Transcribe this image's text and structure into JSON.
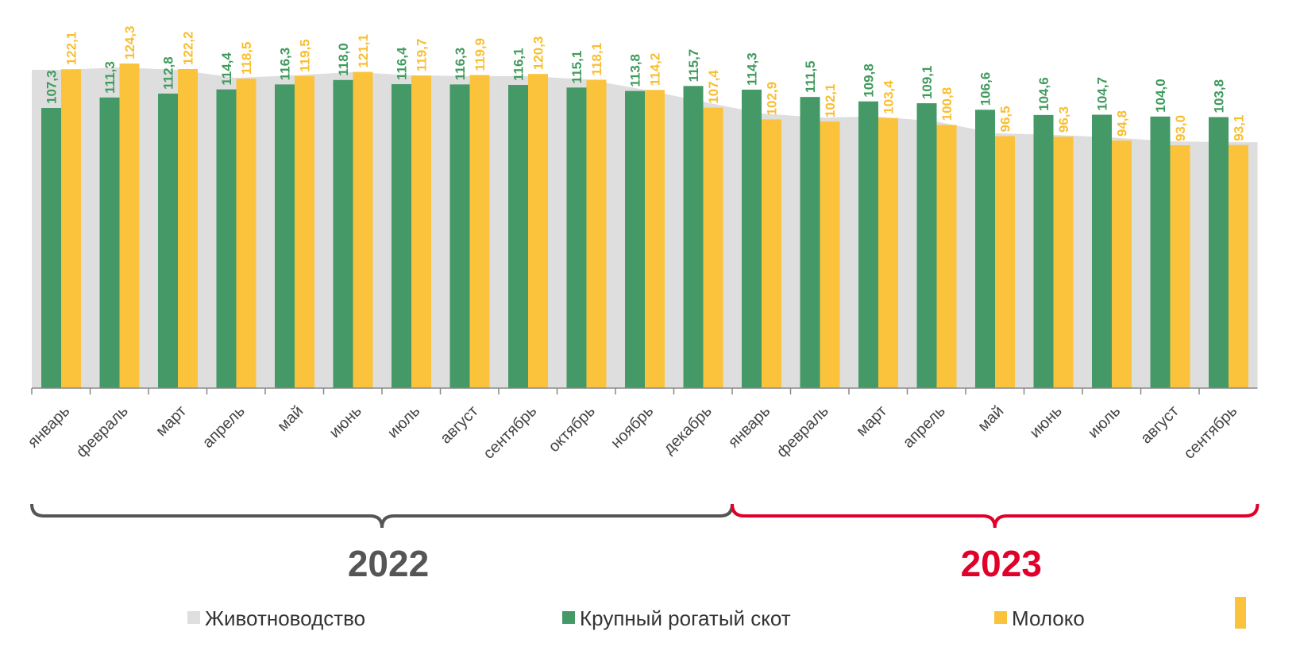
{
  "chart_data": {
    "type": "bar",
    "categories": [
      "январь",
      "февраль",
      "март",
      "апрель",
      "май",
      "июнь",
      "июль",
      "август",
      "сентябрь",
      "октябрь",
      "ноябрь",
      "декабрь",
      "январь",
      "февраль",
      "март",
      "апрель",
      "май",
      "июнь",
      "июль",
      "август",
      "сентябрь"
    ],
    "ylim": [
      0,
      150
    ],
    "groups": [
      {
        "label": "2022",
        "color": "#555555",
        "from": 0,
        "to": 11
      },
      {
        "label": "2023",
        "color": "#e0002a",
        "from": 12,
        "to": 20
      }
    ],
    "series": [
      {
        "name": "Животноводство",
        "type": "area",
        "color": "#dedede",
        "values": [
          121.9,
          122.8,
          121.9,
          118.8,
          119.8,
          121.0,
          119.8,
          119.5,
          119.5,
          118.2,
          114.3,
          109.7,
          105.2,
          103.6,
          104.0,
          102.1,
          97.6,
          97.0,
          96.0,
          94.5,
          94.2
        ]
      },
      {
        "name": "Крупный рогатый скот",
        "type": "bar",
        "color": "#449966",
        "label_color": "#3f9a5c",
        "values": [
          107.3,
          111.3,
          112.8,
          114.4,
          116.3,
          118.0,
          116.4,
          116.3,
          116.1,
          115.1,
          113.8,
          115.7,
          114.3,
          111.5,
          109.8,
          109.1,
          106.6,
          104.6,
          104.7,
          104.0,
          103.8
        ],
        "value_labels": [
          "107,3",
          "111,3",
          "112,8",
          "114,4",
          "116,3",
          "118,0",
          "116,4",
          "116,3",
          "116,1",
          "115,1",
          "113,8",
          "115,7",
          "114,3",
          "111,5",
          "109,8",
          "109,1",
          "106,6",
          "104,6",
          "104,7",
          "104,0",
          "103,8"
        ]
      },
      {
        "name": "Молоко",
        "type": "bar",
        "color": "#fbc33c",
        "label_color": "#f9be30",
        "values": [
          122.1,
          124.3,
          122.2,
          118.5,
          119.5,
          121.1,
          119.7,
          119.9,
          120.3,
          118.1,
          114.2,
          107.4,
          102.9,
          102.1,
          103.4,
          100.8,
          96.5,
          96.3,
          94.8,
          93.0,
          93.1
        ],
        "value_labels": [
          "122,1",
          "124,3",
          "122,2",
          "118,5",
          "119,5",
          "121,1",
          "119,7",
          "119,9",
          "120,3",
          "118,1",
          "114,2",
          "107,4",
          "102,9",
          "102,1",
          "103,4",
          "100,8",
          "96,5",
          "96,3",
          "94,8",
          "93,0",
          "93,1"
        ]
      }
    ]
  }
}
